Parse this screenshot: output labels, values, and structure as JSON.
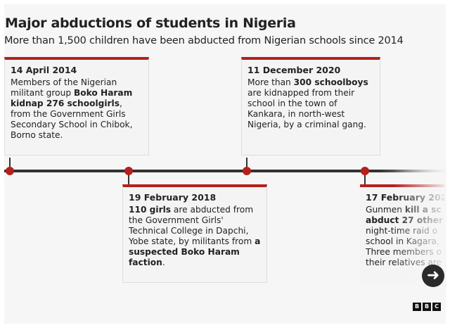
{
  "title": "Major abductions of students in Nigeria",
  "subtitle": "More than 1,500 children have been abducted from Nigerian schools since 2014",
  "colors": {
    "accent": "#b5201c",
    "axis": "#333333",
    "background": "#f6f6f6"
  },
  "events": [
    {
      "date": "14 April 2014",
      "segments": [
        {
          "text": "Members of the Nigerian militant group ",
          "bold": false
        },
        {
          "text": "Boko Haram kidnap 276 schoolgirls",
          "bold": true
        },
        {
          "text": ", from the Government Girls Secondary School in Chibok, Borno state.",
          "bold": false
        }
      ]
    },
    {
      "date": "19 February 2018",
      "segments": [
        {
          "text": "110 girls",
          "bold": true
        },
        {
          "text": " are abducted from the Government Girls' Technical College in Dapchi, Yobe state, by militants from ",
          "bold": false
        },
        {
          "text": "a suspected Boko Haram faction",
          "bold": true
        },
        {
          "text": ".",
          "bold": false
        }
      ]
    },
    {
      "date": "11 December 2020",
      "segments": [
        {
          "text": "More than ",
          "bold": false
        },
        {
          "text": "300 schoolboys",
          "bold": true
        },
        {
          "text": " are kidnapped from their school in the town of Kankara, in north-west Nigeria, by a criminal gang.",
          "bold": false
        }
      ]
    },
    {
      "date": "17 February 202",
      "lines": [
        [
          {
            "text": "Gunmen ",
            "bold": false
          },
          {
            "text": "kill a sc",
            "bold": true
          }
        ],
        [
          {
            "text": "abduct 27 other",
            "bold": true
          }
        ],
        [
          {
            "text": "night-time raid o",
            "bold": false
          }
        ],
        [
          {
            "text": "school in Kagara,",
            "bold": false
          }
        ],
        [
          {
            "text": "Three members o",
            "bold": false
          }
        ],
        [
          {
            "text": "their relatives are",
            "bold": false
          }
        ]
      ]
    }
  ],
  "next_button": {
    "icon": "arrow-right-icon",
    "glyph": "➜"
  },
  "logo": {
    "letters": [
      "B",
      "B",
      "C"
    ]
  }
}
